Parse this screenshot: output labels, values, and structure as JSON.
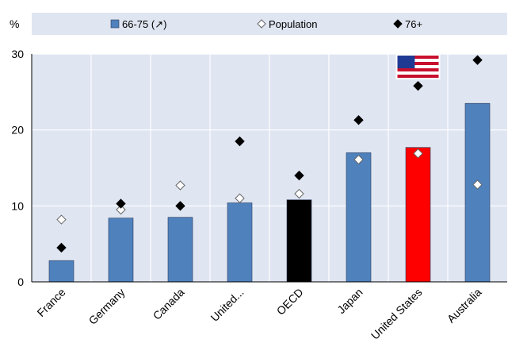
{
  "chart_data": {
    "type": "bar",
    "title": "",
    "unit_label": "%",
    "xlabel": "",
    "ylabel": "",
    "ylim": [
      0,
      30
    ],
    "yticks": [
      0,
      10,
      20,
      30
    ],
    "grid": true,
    "legend_position": "top",
    "categories": [
      "France",
      "Germany",
      "Canada",
      "United...",
      "OECD",
      "Japan",
      "United States",
      "Australia"
    ],
    "series": [
      {
        "name": "66-75 (↗)",
        "type": "bar",
        "marker": "square",
        "values": [
          2.8,
          8.4,
          8.5,
          10.4,
          10.8,
          17.0,
          17.7,
          23.5
        ]
      },
      {
        "name": "Population",
        "type": "scatter",
        "marker": "hollow-diamond",
        "values": [
          8.2,
          9.5,
          12.7,
          11.0,
          11.6,
          16.1,
          16.9,
          12.8
        ]
      },
      {
        "name": "76+",
        "type": "scatter",
        "marker": "filled-diamond",
        "values": [
          4.5,
          10.3,
          10.0,
          18.5,
          14.0,
          21.3,
          25.8,
          29.2
        ]
      }
    ],
    "highlights": {
      "OECD": "#000000",
      "United States": "#ff0000"
    },
    "flag_annotation": {
      "category": "United States",
      "icon": "us-flag-icon"
    },
    "colors": {
      "bar": "#4f81bd",
      "bar_stroke": "#1f3864",
      "plot_bg": "#dfe5f1",
      "legend_bg": "#dfe5f1",
      "grid": "#ffffff",
      "axis": "#000000"
    }
  }
}
